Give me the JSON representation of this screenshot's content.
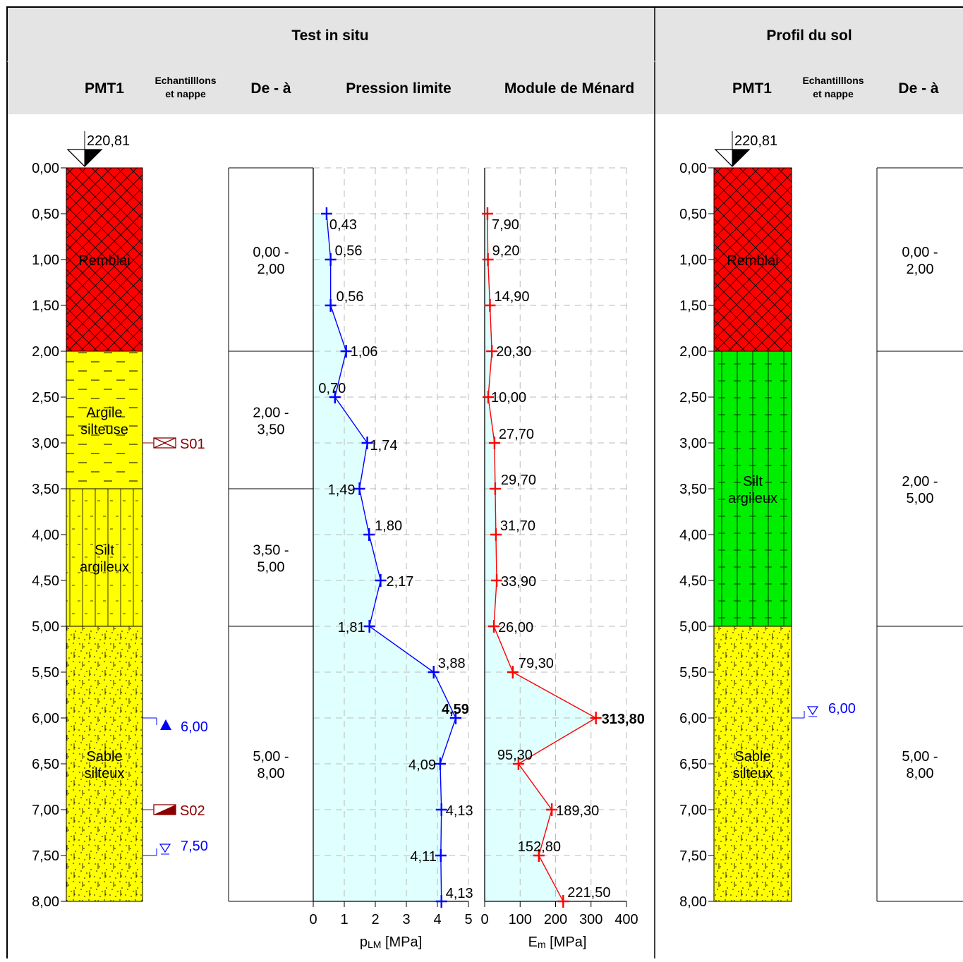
{
  "header": {
    "title_left": "Test in situ",
    "title_right": "Profil du sol",
    "col_pmt": "PMT1",
    "col_samples_1": "Echantilllons",
    "col_samples_2": "et nappe",
    "col_range": "De - à",
    "col_plm": "Pression limite",
    "col_em": "Module de Ménard",
    "col_pmt_r": "PMT1",
    "col_samples_r1": "Echantilllons",
    "col_samples_r2": "et nappe",
    "col_range_r": "De - à"
  },
  "elevation_left": "220,81",
  "elevation_right": "220,81",
  "depth_ticks": [
    "0,00",
    "0,50",
    "1,00",
    "1,50",
    "2,00",
    "2,50",
    "3,00",
    "3,50",
    "4,00",
    "4,50",
    "5,00",
    "5,50",
    "6,00",
    "6,50",
    "7,00",
    "7,50",
    "8,00"
  ],
  "layers_left": [
    {
      "from": 0,
      "to": 2,
      "label1": "Remblai",
      "label2": "",
      "color": "#ff0000",
      "pattern": "cross"
    },
    {
      "from": 2,
      "to": 3.5,
      "label1": "Argile",
      "label2": "silteuse",
      "color": "#ffff00",
      "pattern": "dash"
    },
    {
      "from": 3.5,
      "to": 5,
      "label1": "Silt",
      "label2": "argileux",
      "color": "#ffff00",
      "pattern": "vert"
    },
    {
      "from": 5,
      "to": 8,
      "label1": "Sable",
      "label2": "silteux",
      "color": "#ffff00",
      "pattern": "dots"
    }
  ],
  "layers_right": [
    {
      "from": 0,
      "to": 2,
      "label1": "Remblai",
      "label2": "",
      "color": "#ff0000",
      "pattern": "cross"
    },
    {
      "from": 2,
      "to": 5,
      "label1": "Silt",
      "label2": "argileux",
      "color": "#00ee00",
      "pattern": "plus"
    },
    {
      "from": 5,
      "to": 8,
      "label1": "Sable",
      "label2": "silteux",
      "color": "#ffff00",
      "pattern": "dots"
    }
  ],
  "samples": [
    {
      "depth": 3,
      "label": "S01",
      "type": "open"
    },
    {
      "depth": 7,
      "label": "S02",
      "type": "half"
    }
  ],
  "water_left": [
    {
      "depth": 6,
      "label": "6,00",
      "type": "filled"
    },
    {
      "depth": 7.5,
      "label": "7,50",
      "type": "open"
    }
  ],
  "water_right": [
    {
      "depth": 6,
      "label": "6,00",
      "type": "open"
    }
  ],
  "ranges_left": [
    {
      "from": 0,
      "to": 2,
      "line1": "0,00 -",
      "line2": "2,00"
    },
    {
      "from": 2,
      "to": 3.5,
      "line1": "2,00 -",
      "line2": "3,50"
    },
    {
      "from": 3.5,
      "to": 5,
      "line1": "3,50 -",
      "line2": "5,00"
    },
    {
      "from": 5,
      "to": 8,
      "line1": "5,00 -",
      "line2": "8,00"
    }
  ],
  "ranges_right": [
    {
      "from": 0,
      "to": 2,
      "line1": "0,00 -",
      "line2": "2,00"
    },
    {
      "from": 2,
      "to": 5,
      "line1": "2,00 -",
      "line2": "5,00"
    },
    {
      "from": 5,
      "to": 8,
      "line1": "5,00 -",
      "line2": "8,00"
    }
  ],
  "colors": {
    "plm": "#0000ff",
    "em": "#ff0000",
    "fill": "#e0ffff",
    "header_bg": "#e4e4e4",
    "sample": "#8b0000",
    "water": "#0000ff"
  },
  "chart_data": [
    {
      "type": "line",
      "title": "Pression limite",
      "xlabel": "pLM [MPa]",
      "ylabel": "",
      "xlim": [
        0,
        5
      ],
      "ylim": [
        8,
        0
      ],
      "xticks": [
        "0",
        "1",
        "2",
        "3",
        "4",
        "5"
      ],
      "grid": true,
      "series": [
        {
          "name": "",
          "depth": [
            0.5,
            1,
            1.5,
            2,
            2.5,
            3,
            3.5,
            4,
            4.5,
            5,
            5.5,
            6,
            6.5,
            7,
            7.5,
            8
          ],
          "values": [
            0.43,
            0.56,
            0.56,
            1.06,
            0.7,
            1.74,
            1.49,
            1.8,
            2.17,
            1.81,
            3.88,
            4.59,
            4.09,
            4.13,
            4.11,
            4.13
          ],
          "labels": [
            "0,43",
            "0,56",
            "0,56",
            "1,06",
            "0,70",
            "1,74",
            "1,49",
            "1,80",
            "2,17",
            "1,81",
            "3,88",
            "4,59",
            "4,09",
            "4,13",
            "4,11",
            "4,13"
          ]
        }
      ]
    },
    {
      "type": "line",
      "title": "Module de Ménard",
      "xlabel": "Em [MPa]",
      "ylabel": "",
      "xlim": [
        0,
        400
      ],
      "ylim": [
        8,
        0
      ],
      "xticks": [
        "0",
        "100",
        "200",
        "300",
        "400"
      ],
      "grid": true,
      "series": [
        {
          "name": "",
          "depth": [
            0.5,
            1,
            1.5,
            2,
            2.5,
            3,
            3.5,
            4,
            4.5,
            5,
            5.5,
            6,
            6.5,
            7,
            7.5,
            8
          ],
          "values": [
            7.9,
            9.2,
            14.9,
            20.3,
            10.0,
            27.7,
            29.7,
            31.7,
            33.9,
            26.0,
            79.3,
            313.8,
            95.3,
            189.3,
            152.8,
            221.5
          ],
          "labels": [
            "7,90",
            "9,20",
            "14,90",
            "20,30",
            "10,00",
            "27,70",
            "29,70",
            "31,70",
            "33,90",
            "26,00",
            "79,30",
            "313,80",
            "95,30",
            "189,30",
            "152,80",
            "221,50"
          ]
        }
      ]
    }
  ]
}
